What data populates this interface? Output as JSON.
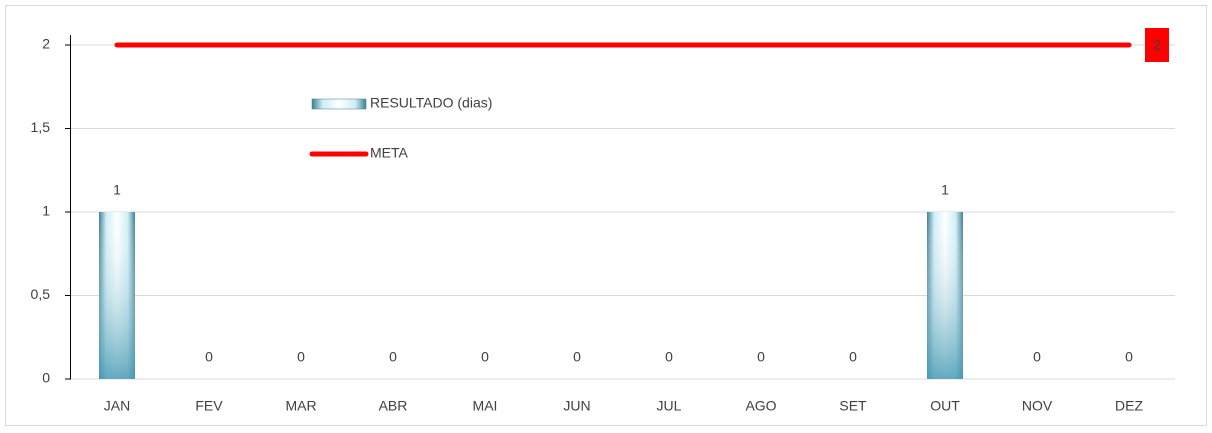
{
  "chart_data": {
    "type": "bar",
    "categories": [
      "JAN",
      "FEV",
      "MAR",
      "ABR",
      "MAI",
      "JUN",
      "JUL",
      "AGO",
      "SET",
      "OUT",
      "NOV",
      "DEZ"
    ],
    "series": [
      {
        "name": "RESULTADO (dias)",
        "type": "bar",
        "color": "#5fa9c0",
        "values": [
          1,
          0,
          0,
          0,
          0,
          0,
          0,
          0,
          0,
          1,
          0,
          0
        ]
      },
      {
        "name": "META",
        "type": "line",
        "color": "#ff0000",
        "values": [
          2,
          2,
          2,
          2,
          2,
          2,
          2,
          2,
          2,
          2,
          2,
          2
        ]
      }
    ],
    "ylim": [
      0,
      2
    ],
    "yticks": [
      0,
      {
        "value": 0.5,
        "label": "0,5"
      },
      1,
      {
        "value": 1.5,
        "label": "1,5"
      },
      2
    ],
    "grid": true
  }
}
